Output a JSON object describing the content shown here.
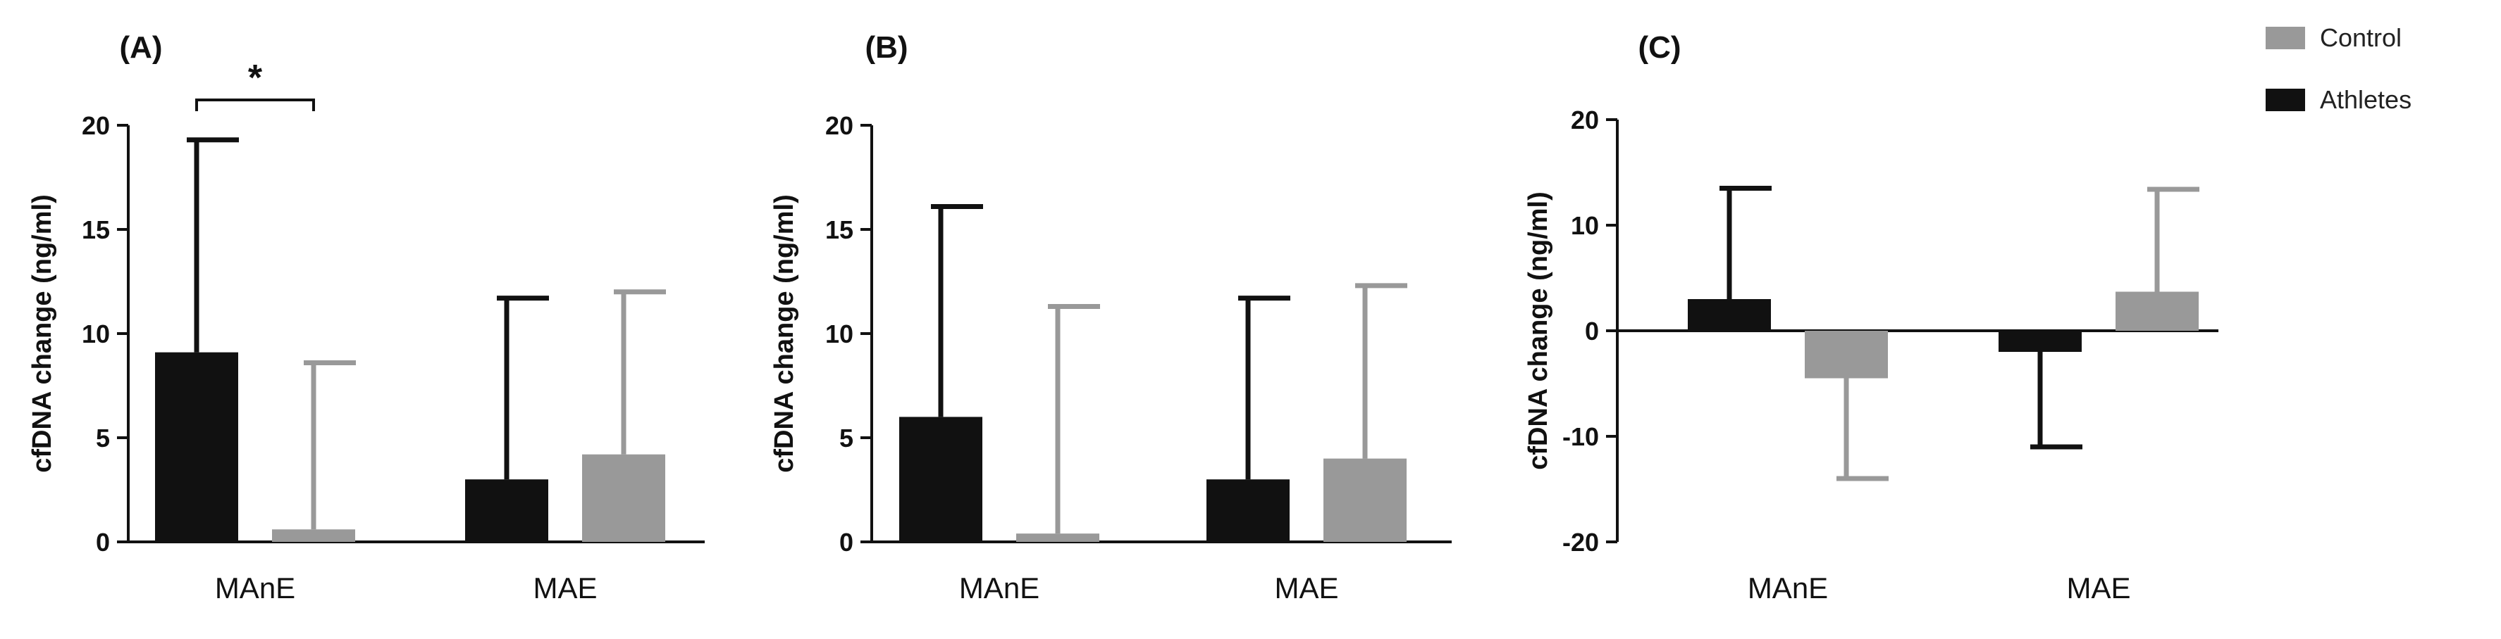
{
  "legend": {
    "items": [
      {
        "label": "Control",
        "color": "#999999"
      },
      {
        "label": "Athletes",
        "color": "#111111"
      }
    ],
    "placement": "top-right"
  },
  "chart_data": [
    {
      "type": "bar",
      "panel_label": "(A)",
      "title": "",
      "xlabel": "",
      "ylabel": "cfDNA  change (ng/ml)",
      "ylim": [
        0,
        20
      ],
      "yticks": [
        0,
        5,
        10,
        15,
        20
      ],
      "categories": [
        "MAnE",
        "MAE"
      ],
      "series": [
        {
          "name": "Athletes",
          "color": "#111111",
          "values": [
            9.1,
            3.0
          ],
          "error_upper": [
            10.2,
            8.7
          ]
        },
        {
          "name": "Control",
          "color": "#999999",
          "values": [
            0.6,
            4.2
          ],
          "error_upper": [
            8.0,
            7.8
          ]
        }
      ],
      "significance": [
        {
          "category": "MAnE",
          "label": "*"
        }
      ]
    },
    {
      "type": "bar",
      "panel_label": "(B)",
      "title": "",
      "xlabel": "",
      "ylabel": "cfDNA  change (ng/ml)",
      "ylim": [
        0,
        20
      ],
      "yticks": [
        0,
        5,
        10,
        15,
        20
      ],
      "categories": [
        "MAnE",
        "MAE"
      ],
      "series": [
        {
          "name": "Athletes",
          "color": "#111111",
          "values": [
            6.0,
            3.0
          ],
          "error_upper": [
            10.1,
            8.7
          ]
        },
        {
          "name": "Control",
          "color": "#999999",
          "values": [
            0.4,
            4.0
          ],
          "error_upper": [
            10.9,
            8.3
          ]
        }
      ],
      "significance": []
    },
    {
      "type": "bar",
      "panel_label": "(C)",
      "title": "",
      "xlabel": "",
      "ylabel": "cfDNA  change (ng/ml)",
      "ylim": [
        -20,
        20
      ],
      "yticks": [
        -20,
        -10,
        0,
        10,
        20
      ],
      "categories": [
        "MAnE",
        "MAE"
      ],
      "series": [
        {
          "name": "Athletes",
          "color": "#111111",
          "values": [
            3.0,
            -2.0
          ],
          "error_upper": [
            10.5,
            9.0
          ]
        },
        {
          "name": "Control",
          "color": "#999999",
          "values": [
            -4.5,
            3.7
          ],
          "error_upper": [
            9.5,
            9.7
          ]
        }
      ],
      "significance": []
    }
  ]
}
